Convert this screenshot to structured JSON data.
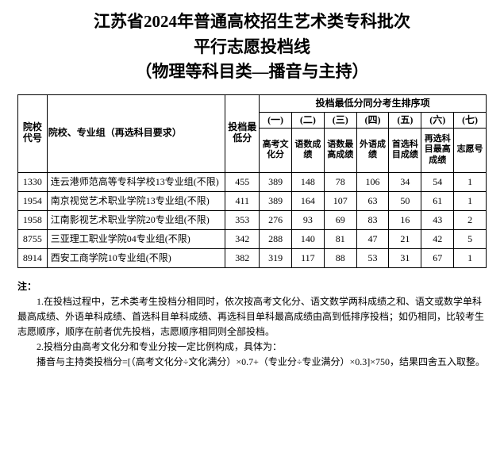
{
  "title": {
    "line1": "江苏省2024年普通高校招生艺术类专科批次",
    "line2": "平行志愿投档线",
    "line3": "（物理等科目类—播音与主持）"
  },
  "headers": {
    "code": "院校代号",
    "name": "院校、专业组（再选科目要求）",
    "score": "投档最低分",
    "tie_group": "投档最低分同分考生排序项",
    "sub_nums": [
      "(一)",
      "(二)",
      "(三)",
      "(四)",
      "(五)",
      "(六)",
      "(七)"
    ],
    "sub_labels": [
      "高考文化分",
      "语数成绩",
      "语数最高成绩",
      "外语成绩",
      "首选科目成绩",
      "再选科目最高成绩",
      "志愿号"
    ]
  },
  "rows": [
    {
      "code": "1330",
      "name": "连云港师范高等专科学校13专业组(不限)",
      "score": "455",
      "t": [
        "389",
        "148",
        "78",
        "106",
        "34",
        "54",
        "1"
      ]
    },
    {
      "code": "1954",
      "name": "南京视觉艺术职业学院13专业组(不限)",
      "score": "411",
      "t": [
        "389",
        "164",
        "107",
        "63",
        "50",
        "61",
        "1"
      ]
    },
    {
      "code": "1958",
      "name": "江南影视艺术职业学院20专业组(不限)",
      "score": "353",
      "t": [
        "276",
        "93",
        "69",
        "83",
        "16",
        "43",
        "2"
      ]
    },
    {
      "code": "8755",
      "name": "三亚理工职业学院04专业组(不限)",
      "score": "342",
      "t": [
        "288",
        "140",
        "81",
        "47",
        "21",
        "42",
        "5"
      ]
    },
    {
      "code": "8914",
      "name": "西安工商学院10专业组(不限)",
      "score": "382",
      "t": [
        "319",
        "117",
        "88",
        "53",
        "31",
        "67",
        "1"
      ]
    }
  ],
  "notes": {
    "title": "注：",
    "p1": "1.在投档过程中，艺术类考生投档分相同时，依次按高考文化分、语文数学两科成绩之和、语文或数学单科最高成绩、外语单科成绩、首选科目单科成绩、再选科目单科最高成绩由高到低排序投档；如仍相同，比较考生志愿顺序，顺序在前者优先投档，志愿顺序相同则全部投档。",
    "p2": "2.投档分由高考文化分和专业分按一定比例构成，具体为：",
    "p3": "播音与主持类投档分=[（高考文化分÷文化满分）×0.7+（专业分÷专业满分）×0.3]×750，结果四舍五入取整。"
  }
}
